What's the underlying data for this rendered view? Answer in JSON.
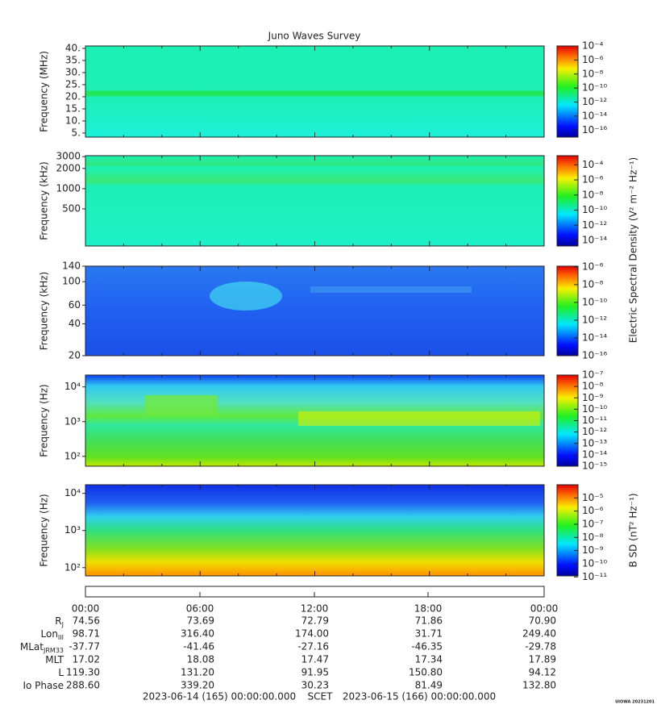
{
  "chart_data": [
    {
      "type": "spectrogram",
      "title": "Juno Waves Survey",
      "ylabel": "Frequency (MHz)",
      "yscale": "linear",
      "ylim": [
        3.3,
        41
      ],
      "yticks": [
        {
          "value": 5,
          "label": "5."
        },
        {
          "value": 10,
          "label": "10."
        },
        {
          "value": 15,
          "label": "15."
        },
        {
          "value": 20,
          "label": "20."
        },
        {
          "value": 25,
          "label": "25."
        },
        {
          "value": 30,
          "label": "30."
        },
        {
          "value": 35,
          "label": "35."
        },
        {
          "value": 40,
          "label": "40."
        }
      ],
      "clim": [
        1e-17,
        0.0001
      ],
      "cticks": [
        {
          "value": 0.0001,
          "label": "10⁻⁴"
        },
        {
          "value": 1e-06,
          "label": "10⁻⁶"
        },
        {
          "value": 1e-08,
          "label": "10⁻⁸"
        },
        {
          "value": 1e-10,
          "label": "10⁻¹⁰"
        },
        {
          "value": 1e-12,
          "label": "10⁻¹²"
        },
        {
          "value": 1e-14,
          "label": "10⁻¹⁴"
        },
        {
          "value": 1e-16,
          "label": "10⁻¹⁶"
        }
      ]
    },
    {
      "type": "spectrogram",
      "ylabel": "Frequency (kHz)",
      "yscale": "log",
      "ylim": [
        140,
        3100
      ],
      "yticks": [
        500,
        1000,
        2000,
        3000
      ],
      "clim": [
        1.8e-15,
        0.0016
      ],
      "cticks": [
        {
          "value": 0.0001,
          "label": "10⁻⁴"
        },
        {
          "value": 1e-06,
          "label": "10⁻⁶"
        },
        {
          "value": 1e-08,
          "label": "10⁻⁸"
        },
        {
          "value": 1e-10,
          "label": "10⁻¹⁰"
        },
        {
          "value": 1e-12,
          "label": "10⁻¹²"
        },
        {
          "value": 1e-14,
          "label": "10⁻¹⁴"
        }
      ],
      "clabel": "Electric Spectral Density (V² m⁻² Hz⁻¹)"
    },
    {
      "type": "spectrogram",
      "ylabel": "Frequency (kHz)",
      "yscale": "log",
      "ylim": [
        20,
        140
      ],
      "yticks": [
        20,
        40,
        60,
        100,
        140
      ],
      "clim": [
        1e-16,
        1.2e-06
      ],
      "cticks": [
        {
          "value": 1e-06,
          "label": "10⁻⁶"
        },
        {
          "value": 1e-08,
          "label": "10⁻⁸"
        },
        {
          "value": 1e-10,
          "label": "10⁻¹⁰"
        },
        {
          "value": 1e-12,
          "label": "10⁻¹²"
        },
        {
          "value": 1e-14,
          "label": "10⁻¹⁴"
        },
        {
          "value": 1e-16,
          "label": "10⁻¹⁶"
        }
      ]
    },
    {
      "type": "spectrogram",
      "ylabel": "Frequency (Hz)",
      "yscale": "log",
      "ylim": [
        52,
        22000
      ],
      "yticks": [
        {
          "value": 100,
          "label": "10²"
        },
        {
          "value": 1000,
          "label": "10³"
        },
        {
          "value": 10000,
          "label": "10⁴"
        }
      ],
      "clim": [
        1e-15,
        1e-07
      ],
      "cticks": [
        {
          "value": 1e-07,
          "label": "10⁻⁷"
        },
        {
          "value": 1e-08,
          "label": "10⁻⁸"
        },
        {
          "value": 1e-09,
          "label": "10⁻⁹"
        },
        {
          "value": 1e-10,
          "label": "10⁻¹⁰"
        },
        {
          "value": 1e-11,
          "label": "10⁻¹¹"
        },
        {
          "value": 1e-12,
          "label": "10⁻¹²"
        },
        {
          "value": 1e-13,
          "label": "10⁻¹³"
        },
        {
          "value": 1e-14,
          "label": "10⁻¹⁴"
        },
        {
          "value": 1e-15,
          "label": "10⁻¹⁵"
        }
      ]
    },
    {
      "type": "spectrogram",
      "ylabel": "Frequency (Hz)",
      "yscale": "log",
      "ylim": [
        60,
        17000
      ],
      "yticks": [
        {
          "value": 100,
          "label": "10²"
        },
        {
          "value": 1000,
          "label": "10³"
        },
        {
          "value": 10000,
          "label": "10⁴"
        }
      ],
      "clim": [
        1.2e-11,
        0.0001
      ],
      "cticks": [
        {
          "value": 1e-05,
          "label": "10⁻⁵"
        },
        {
          "value": 1e-06,
          "label": "10⁻⁶"
        },
        {
          "value": 1e-07,
          "label": "10⁻⁷"
        },
        {
          "value": 1e-08,
          "label": "10⁻⁸"
        },
        {
          "value": 1e-09,
          "label": "10⁻⁹"
        },
        {
          "value": 1e-10,
          "label": "10⁻¹⁰"
        },
        {
          "value": 1e-11,
          "label": "10⁻¹¹"
        }
      ],
      "clabel": "B SD (nT² Hz⁻¹)"
    }
  ],
  "time_ticks": [
    "00:00",
    "06:00",
    "12:00",
    "18:00",
    "00:00"
  ],
  "ephemeris": [
    {
      "label": "R",
      "sub": "J",
      "values": [
        "74.56",
        "73.69",
        "72.79",
        "71.86",
        "70.90"
      ]
    },
    {
      "label": "Lon",
      "sub": "III",
      "values": [
        "98.71",
        "316.40",
        "174.00",
        "31.71",
        "249.40"
      ]
    },
    {
      "label": "MLat",
      "sub": "JRM33",
      "values": [
        "-37.77",
        "-41.46",
        "-27.16",
        "-46.35",
        "-29.78"
      ]
    },
    {
      "label": "MLT",
      "values": [
        "17.02",
        "18.08",
        "17.47",
        "17.34",
        "17.89"
      ]
    },
    {
      "label": "L",
      "values": [
        "119.30",
        "131.20",
        "91.95",
        "150.80",
        "94.12"
      ]
    },
    {
      "label": "Io Phase",
      "values": [
        "288.60",
        "339.20",
        "30.23",
        "81.49",
        "132.80"
      ]
    }
  ],
  "footer": {
    "start": "2023-06-14 (165) 00:00:00.000",
    "scet": "SCET",
    "end": "2023-06-15 (166) 00:00:00.000"
  },
  "credit": "UIOWA 20231201"
}
